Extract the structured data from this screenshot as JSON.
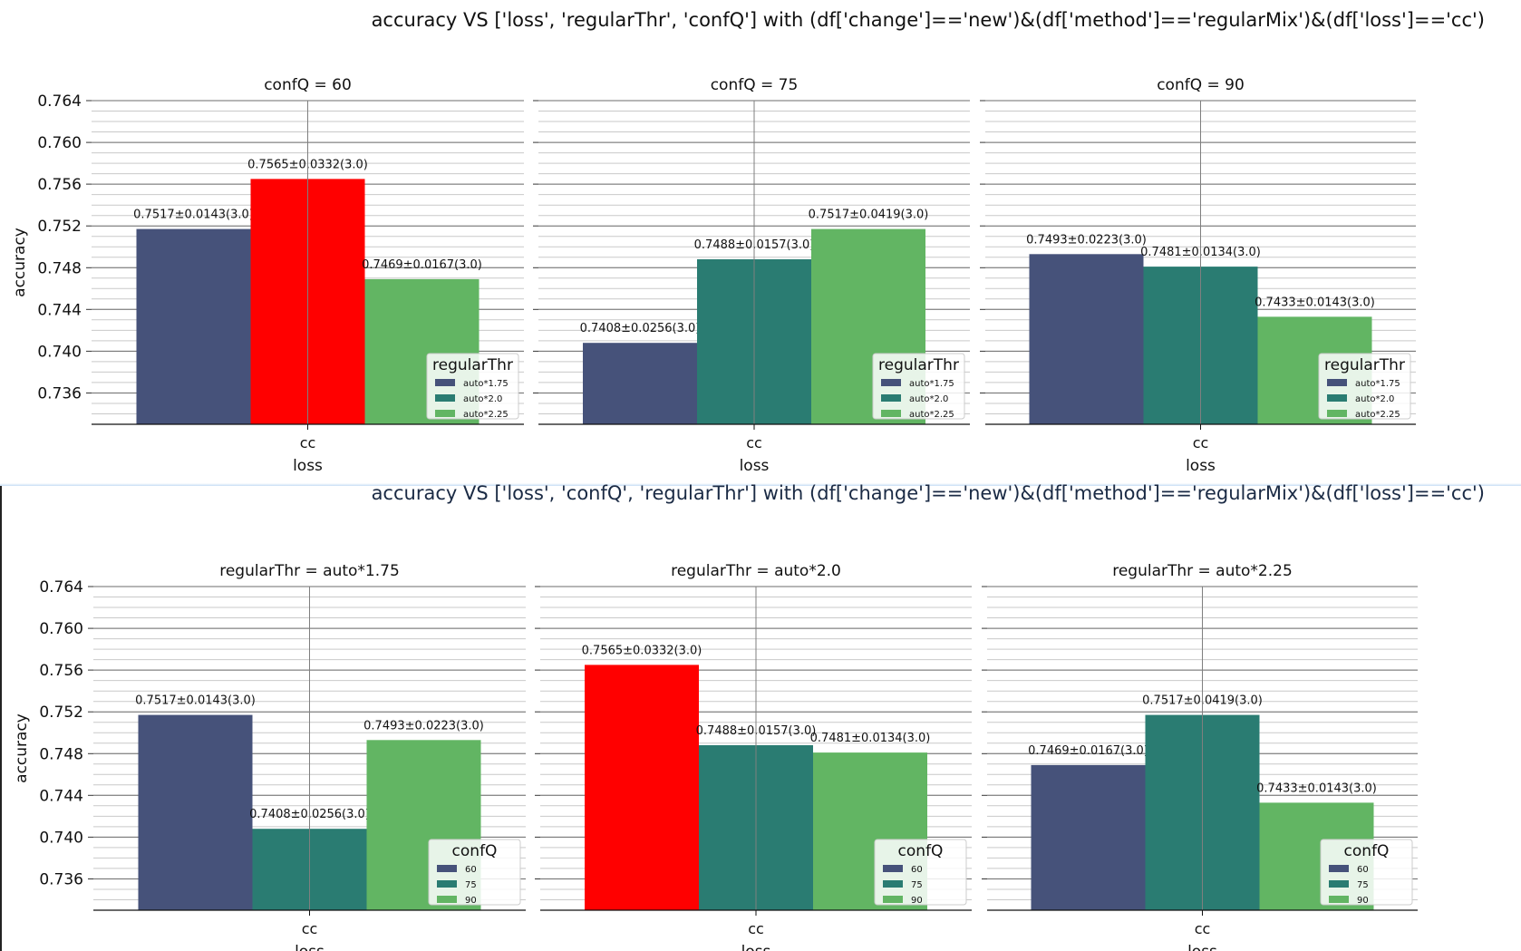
{
  "figures": [
    {
      "title": "accuracy VS ['loss', 'regularThr', 'confQ'] with (df['change']=='new')&(df['method']=='regularMix')&(df['loss']=='cc')",
      "legend_title": "regularThr",
      "legend_entries": [
        "auto*1.75",
        "auto*2.0",
        "auto*2.25"
      ],
      "series_colors": [
        "#46527a",
        "#2a7c72",
        "#62b563"
      ],
      "highlight_color": "#ff0000"
    },
    {
      "title": "accuracy VS ['loss', 'confQ', 'regularThr'] with (df['change']=='new')&(df['method']=='regularMix')&(df['loss']=='cc')",
      "legend_title": "confQ",
      "legend_entries": [
        "60",
        "75",
        "90"
      ],
      "series_colors": [
        "#46527a",
        "#2a7c72",
        "#62b563"
      ],
      "highlight_color": "#ff0000"
    }
  ],
  "chart_data": [
    {
      "type": "bar",
      "figure": 0,
      "title": "confQ = 60",
      "categories": [
        "cc"
      ],
      "xlabel": "loss",
      "ylabel": "accuracy",
      "ylim": [
        0.733,
        0.764
      ],
      "yticks": [
        0.736,
        0.74,
        0.744,
        0.748,
        0.752,
        0.756,
        0.76,
        0.764
      ],
      "grid": true,
      "legend_position": "lower-right",
      "series": [
        {
          "name": "auto*1.75",
          "values": [
            0.7517
          ],
          "label": "0.7517±0.0143(3.0)"
        },
        {
          "name": "auto*2.0",
          "values": [
            0.7565
          ],
          "label": "0.7565±0.0332(3.0)",
          "highlight": true
        },
        {
          "name": "auto*2.25",
          "values": [
            0.7469
          ],
          "label": "0.7469±0.0167(3.0)"
        }
      ]
    },
    {
      "type": "bar",
      "figure": 0,
      "title": "confQ = 75",
      "categories": [
        "cc"
      ],
      "xlabel": "loss",
      "ylabel": "",
      "ylim": [
        0.733,
        0.764
      ],
      "yticks": [],
      "grid": true,
      "legend_position": "lower-right",
      "series": [
        {
          "name": "auto*1.75",
          "values": [
            0.7408
          ],
          "label": "0.7408±0.0256(3.0)"
        },
        {
          "name": "auto*2.0",
          "values": [
            0.7488
          ],
          "label": "0.7488±0.0157(3.0)"
        },
        {
          "name": "auto*2.25",
          "values": [
            0.7517
          ],
          "label": "0.7517±0.0419(3.0)"
        }
      ]
    },
    {
      "type": "bar",
      "figure": 0,
      "title": "confQ = 90",
      "categories": [
        "cc"
      ],
      "xlabel": "loss",
      "ylabel": "",
      "ylim": [
        0.733,
        0.764
      ],
      "yticks": [],
      "grid": true,
      "legend_position": "lower-right",
      "series": [
        {
          "name": "auto*1.75",
          "values": [
            0.7493
          ],
          "label": "0.7493±0.0223(3.0)"
        },
        {
          "name": "auto*2.0",
          "values": [
            0.7481
          ],
          "label": "0.7481±0.0134(3.0)"
        },
        {
          "name": "auto*2.25",
          "values": [
            0.7433
          ],
          "label": "0.7433±0.0143(3.0)"
        }
      ]
    },
    {
      "type": "bar",
      "figure": 1,
      "title": "regularThr = auto*1.75",
      "categories": [
        "cc"
      ],
      "xlabel": "loss",
      "ylabel": "accuracy",
      "ylim": [
        0.733,
        0.764
      ],
      "yticks": [
        0.736,
        0.74,
        0.744,
        0.748,
        0.752,
        0.756,
        0.76,
        0.764
      ],
      "grid": true,
      "legend_position": "lower-right",
      "series": [
        {
          "name": "60",
          "values": [
            0.7517
          ],
          "label": "0.7517±0.0143(3.0)"
        },
        {
          "name": "75",
          "values": [
            0.7408
          ],
          "label": "0.7408±0.0256(3.0)"
        },
        {
          "name": "90",
          "values": [
            0.7493
          ],
          "label": "0.7493±0.0223(3.0)"
        }
      ]
    },
    {
      "type": "bar",
      "figure": 1,
      "title": "regularThr = auto*2.0",
      "categories": [
        "cc"
      ],
      "xlabel": "loss",
      "ylabel": "",
      "ylim": [
        0.733,
        0.764
      ],
      "yticks": [],
      "grid": true,
      "legend_position": "lower-right",
      "series": [
        {
          "name": "60",
          "values": [
            0.7565
          ],
          "label": "0.7565±0.0332(3.0)",
          "highlight": true
        },
        {
          "name": "75",
          "values": [
            0.7488
          ],
          "label": "0.7488±0.0157(3.0)"
        },
        {
          "name": "90",
          "values": [
            0.7481
          ],
          "label": "0.7481±0.0134(3.0)"
        }
      ]
    },
    {
      "type": "bar",
      "figure": 1,
      "title": "regularThr = auto*2.25",
      "categories": [
        "cc"
      ],
      "xlabel": "loss",
      "ylabel": "",
      "ylim": [
        0.733,
        0.764
      ],
      "yticks": [],
      "grid": true,
      "legend_position": "lower-right",
      "series": [
        {
          "name": "60",
          "values": [
            0.7469
          ],
          "label": "0.7469±0.0167(3.0)"
        },
        {
          "name": "75",
          "values": [
            0.7517
          ],
          "label": "0.7517±0.0419(3.0)"
        },
        {
          "name": "90",
          "values": [
            0.7433
          ],
          "label": "0.7433±0.0143(3.0)"
        }
      ]
    }
  ]
}
